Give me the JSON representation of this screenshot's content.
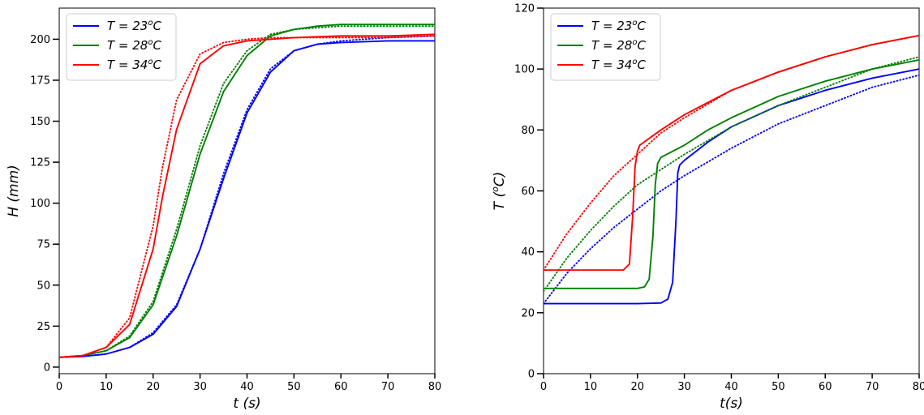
{
  "chart_data": [
    {
      "type": "line",
      "xlabel": "t (s)",
      "ylabel": "H (mm)",
      "xlim": [
        0,
        80
      ],
      "ylim": [
        -4,
        219
      ],
      "xticks": [
        0,
        10,
        20,
        30,
        40,
        50,
        60,
        70,
        80
      ],
      "yticks": [
        0,
        25,
        50,
        75,
        100,
        125,
        150,
        175,
        200
      ],
      "legend": {
        "placement": "top-left",
        "entries": [
          "T = 23°C",
          "T = 28°C",
          "T = 34°C"
        ]
      },
      "grid": false,
      "series": [
        {
          "name": "T = 23°C",
          "color": "#0000ff",
          "style": "solid",
          "x": [
            0,
            5,
            10,
            15,
            20,
            25,
            30,
            35,
            40,
            45,
            50,
            55,
            60,
            70,
            80
          ],
          "y": [
            6,
            6.5,
            8,
            12,
            20,
            37,
            72,
            115,
            155,
            180,
            193,
            197,
            198,
            199,
            199
          ]
        },
        {
          "name": "T = 23°C",
          "color": "#0000ff",
          "style": "dotted",
          "x": [
            0,
            5,
            10,
            15,
            20,
            25,
            30,
            35,
            40,
            45,
            50,
            55,
            60,
            70,
            80
          ],
          "y": [
            6,
            6.5,
            8,
            12,
            21,
            38,
            72,
            118,
            157,
            182,
            193,
            197,
            199,
            201,
            202
          ]
        },
        {
          "name": "T = 28°C",
          "color": "#008000",
          "style": "solid",
          "x": [
            0,
            5,
            10,
            15,
            20,
            25,
            30,
            35,
            40,
            45,
            50,
            55,
            60,
            70,
            80
          ],
          "y": [
            6,
            7,
            10,
            18,
            38,
            80,
            130,
            168,
            190,
            202,
            206,
            208,
            209,
            209,
            209
          ]
        },
        {
          "name": "T = 28°C",
          "color": "#008000",
          "style": "dotted",
          "x": [
            0,
            5,
            10,
            15,
            20,
            25,
            30,
            35,
            40,
            45,
            50,
            55,
            60,
            70,
            80
          ],
          "y": [
            6,
            7,
            10,
            19,
            40,
            84,
            135,
            173,
            193,
            203,
            206,
            207,
            208,
            208,
            208
          ]
        },
        {
          "name": "T = 34°C",
          "color": "#ff0000",
          "style": "solid",
          "x": [
            0,
            5,
            10,
            15,
            20,
            22,
            25,
            30,
            35,
            40,
            45,
            50,
            60,
            70,
            80
          ],
          "y": [
            6,
            7,
            12,
            26,
            72,
            104,
            145,
            185,
            196,
            199,
            200,
            201,
            202,
            202,
            203
          ]
        },
        {
          "name": "T = 34°C",
          "color": "#ff0000",
          "style": "dotted",
          "x": [
            0,
            5,
            10,
            15,
            20,
            22,
            25,
            30,
            35,
            40,
            45,
            50,
            60,
            70,
            80
          ],
          "y": [
            6,
            7,
            12,
            30,
            86,
            122,
            163,
            191,
            198,
            200,
            201,
            201,
            201,
            201,
            202
          ]
        }
      ]
    },
    {
      "type": "line",
      "xlabel": "t(s)",
      "ylabel": "T (°C)",
      "xlim": [
        0,
        80
      ],
      "ylim": [
        0,
        120
      ],
      "xticks": [
        0,
        10,
        20,
        30,
        40,
        50,
        60,
        70,
        80
      ],
      "yticks": [
        0,
        20,
        40,
        60,
        80,
        100,
        120
      ],
      "legend": {
        "placement": "top-left",
        "entries": [
          "T = 23°C",
          "T = 28°C",
          "T = 34°C"
        ]
      },
      "grid": false,
      "series": [
        {
          "name": "T = 23°C",
          "color": "#0000ff",
          "style": "solid",
          "x": [
            0,
            10,
            20,
            25,
            26.5,
            27.5,
            28.2,
            28.6,
            29,
            30,
            35,
            40,
            50,
            60,
            70,
            80
          ],
          "y": [
            23,
            23,
            23,
            23.2,
            24.5,
            30,
            50,
            66,
            68.5,
            70,
            76,
            81,
            88,
            93,
            97,
            100
          ]
        },
        {
          "name": "T = 23°C",
          "color": "#0000ff",
          "style": "dotted",
          "x": [
            0,
            5,
            10,
            15,
            20,
            25,
            30,
            40,
            50,
            60,
            70,
            80
          ],
          "y": [
            23,
            33,
            41,
            48,
            54,
            60,
            65,
            74,
            82,
            88,
            94,
            98
          ]
        },
        {
          "name": "T = 28°C",
          "color": "#008000",
          "style": "solid",
          "x": [
            0,
            10,
            20,
            21.5,
            22.5,
            23.3,
            23.8,
            24.3,
            25,
            30,
            35,
            40,
            50,
            60,
            70,
            80
          ],
          "y": [
            28,
            28,
            28,
            28.5,
            31,
            45,
            62,
            69,
            71,
            75,
            80,
            84,
            91,
            96,
            100,
            103
          ]
        },
        {
          "name": "T = 28°C",
          "color": "#008000",
          "style": "dotted",
          "x": [
            0,
            5,
            10,
            15,
            20,
            25,
            30,
            40,
            50,
            60,
            70,
            80
          ],
          "y": [
            27,
            38,
            47,
            55,
            62,
            67,
            72,
            81,
            88,
            94,
            100,
            104
          ]
        },
        {
          "name": "T = 34°C",
          "color": "#ff0000",
          "style": "solid",
          "x": [
            0,
            10,
            17,
            18.3,
            19,
            19.5,
            20,
            20.5,
            25,
            30,
            35,
            40,
            50,
            60,
            70,
            80
          ],
          "y": [
            34,
            34,
            34,
            36,
            52,
            68,
            73,
            75,
            80,
            85,
            89,
            93,
            99,
            104,
            108,
            111
          ]
        },
        {
          "name": "T = 34°C",
          "color": "#ff0000",
          "style": "dotted",
          "x": [
            0,
            5,
            10,
            15,
            20,
            25,
            30,
            40,
            50,
            60,
            70,
            80
          ],
          "y": [
            34,
            46,
            56,
            65,
            72,
            79,
            84,
            93,
            99,
            104,
            108,
            111
          ]
        }
      ]
    }
  ]
}
